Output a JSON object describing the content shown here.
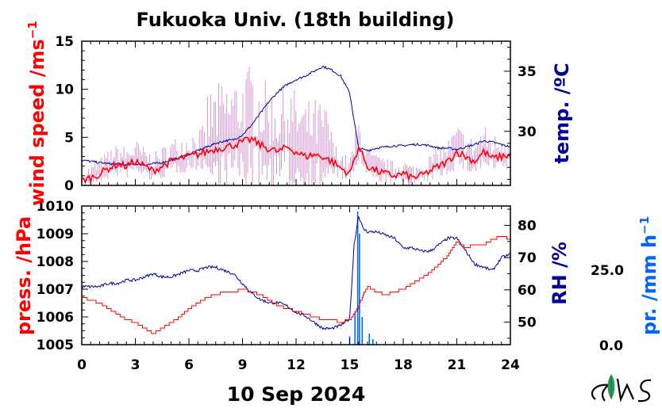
{
  "colors": {
    "wind": "#ff0000",
    "wind_raw": "#cc88cc",
    "temp": "#000099",
    "pressure": "#ff0000",
    "rh": "#000099",
    "precip": "#0066ff",
    "logo_green": "#2a9a55"
  },
  "chart_data": [
    {
      "type": "line",
      "title": "Fukuoka Univ. (18th building)",
      "x_ticks": [
        "0",
        "3",
        "6",
        "9",
        "12",
        "15",
        "18",
        "21",
        "24"
      ],
      "xlim": [
        0,
        24
      ],
      "left_axis": {
        "label": "wind speed /ms",
        "superscript": "−1",
        "ylim": [
          0,
          15
        ],
        "ticks": [
          "0",
          "5",
          "10",
          "15"
        ]
      },
      "right_axis": {
        "label": "temp. /ºC",
        "ylim": [
          25.5,
          37.5
        ],
        "ticks": [
          "30",
          "35"
        ]
      },
      "series": [
        {
          "axis": "left",
          "kind": "wind_mean",
          "x": [
            0,
            0.5,
            1,
            1.5,
            2,
            2.5,
            3,
            3.5,
            4,
            4.5,
            5,
            5.5,
            6,
            6.5,
            7,
            7.5,
            8,
            8.5,
            9,
            9.5,
            10,
            10.5,
            11,
            11.5,
            12,
            12.5,
            13,
            13.5,
            14,
            14.5,
            15,
            15.5,
            16,
            16.5,
            17,
            17.5,
            18,
            18.5,
            19,
            19.5,
            20,
            20.5,
            21,
            21.5,
            22,
            22.5,
            23,
            23.5,
            24
          ],
          "values": [
            0.5,
            0.8,
            1.2,
            1.8,
            2.2,
            2.0,
            2.5,
            2.0,
            1.5,
            2.0,
            2.5,
            2.8,
            3.0,
            3.2,
            3.5,
            3.8,
            4.0,
            4.2,
            4.5,
            4.8,
            4.2,
            3.8,
            3.5,
            4.0,
            3.5,
            3.0,
            3.2,
            3.0,
            2.5,
            1.8,
            1.2,
            4.0,
            2.0,
            1.5,
            1.2,
            1.0,
            1.2,
            0.8,
            1.0,
            1.5,
            2.0,
            2.5,
            3.5,
            3.0,
            2.5,
            3.5,
            2.8,
            3.0,
            3.2
          ]
        },
        {
          "axis": "right",
          "kind": "temperature",
          "x": [
            0,
            0.5,
            1,
            1.5,
            2,
            2.5,
            3,
            3.5,
            4,
            4.5,
            5,
            5.5,
            6,
            6.5,
            7,
            7.5,
            8,
            8.5,
            9,
            9.5,
            10,
            10.5,
            11,
            11.5,
            12,
            12.5,
            13,
            13.5,
            14,
            14.5,
            15,
            15.5,
            16,
            16.5,
            17,
            17.5,
            18,
            18.5,
            19,
            19.5,
            20,
            20.5,
            21,
            21.5,
            22,
            22.5,
            23,
            23.5,
            24
          ],
          "values": [
            27.6,
            27.5,
            27.4,
            27.3,
            27.3,
            27.2,
            27.3,
            27.2,
            27.3,
            27.4,
            27.6,
            27.8,
            28.1,
            28.4,
            28.7,
            29.0,
            29.2,
            29.3,
            29.7,
            30.5,
            31.5,
            32.5,
            33.3,
            33.9,
            34.3,
            34.6,
            35.0,
            35.4,
            35.1,
            34.6,
            33.2,
            28.6,
            28.4,
            28.6,
            28.7,
            28.8,
            28.8,
            28.9,
            28.9,
            28.8,
            28.6,
            28.6,
            28.5,
            28.7,
            28.9,
            29.2,
            29.1,
            28.9,
            28.7
          ]
        }
      ]
    },
    {
      "type": "line",
      "x_ticks": [
        "0",
        "3",
        "6",
        "9",
        "12",
        "15",
        "18",
        "21",
        "24"
      ],
      "xlabel": "10 Sep 2024",
      "xlim": [
        0,
        24
      ],
      "left_axis": {
        "label": "press. /hPa",
        "ylim": [
          1005,
          1010
        ],
        "ticks": [
          "1005",
          "1006",
          "1007",
          "1008",
          "1009",
          "1010"
        ]
      },
      "right_axis": {
        "label": "RH /%",
        "ylim": [
          43,
          86
        ],
        "ticks": [
          "50",
          "60",
          "70",
          "80"
        ]
      },
      "precip_axis": {
        "label": "pr. /mm h",
        "superscript": "−1",
        "ylim": [
          0,
          50
        ],
        "ticks": [
          "0.0",
          "25.0"
        ]
      },
      "series": [
        {
          "axis": "left",
          "kind": "pressure",
          "x": [
            0,
            0.5,
            1,
            1.5,
            2,
            2.5,
            3,
            3.5,
            4,
            4.5,
            5,
            5.5,
            6,
            6.5,
            7,
            7.5,
            8,
            8.5,
            9,
            9.5,
            10,
            10.5,
            11,
            11.5,
            12,
            12.5,
            13,
            13.5,
            14,
            14.5,
            15,
            15.25,
            15.5,
            15.75,
            16,
            16.5,
            17,
            17.5,
            18,
            18.5,
            19,
            19.5,
            20,
            20.5,
            21,
            21.5,
            22,
            22.5,
            23,
            23.5,
            24
          ],
          "values": [
            1006.7,
            1006.6,
            1006.5,
            1006.3,
            1006.1,
            1005.9,
            1005.8,
            1005.6,
            1005.4,
            1005.6,
            1005.8,
            1006.0,
            1006.3,
            1006.5,
            1006.7,
            1006.8,
            1006.9,
            1006.9,
            1007.0,
            1006.9,
            1006.8,
            1006.6,
            1006.4,
            1006.3,
            1006.2,
            1006.1,
            1006.0,
            1005.9,
            1005.9,
            1005.8,
            1005.9,
            1006.1,
            1006.4,
            1006.8,
            1007.1,
            1006.9,
            1006.8,
            1006.9,
            1007.0,
            1007.2,
            1007.4,
            1007.6,
            1007.9,
            1008.2,
            1008.7,
            1008.5,
            1008.6,
            1008.6,
            1008.8,
            1008.9,
            1008.8
          ]
        },
        {
          "axis": "right",
          "kind": "humidity",
          "x": [
            0,
            0.5,
            1,
            1.5,
            2,
            2.5,
            3,
            3.5,
            4,
            4.5,
            5,
            5.5,
            6,
            6.5,
            7,
            7.5,
            8,
            8.5,
            9,
            9.5,
            10,
            10.5,
            11,
            11.5,
            12,
            12.5,
            13,
            13.5,
            14,
            14.5,
            15,
            15.25,
            15.5,
            15.75,
            16,
            16.5,
            17,
            17.5,
            18,
            18.5,
            19,
            19.5,
            20,
            20.5,
            21,
            21.5,
            22,
            22.5,
            23,
            23.5,
            24
          ],
          "values": [
            61,
            61,
            61,
            62,
            62,
            63,
            63,
            64,
            65,
            64,
            64,
            65,
            66,
            66,
            67,
            67,
            66,
            65,
            62,
            59,
            57,
            56,
            56,
            55,
            53,
            52,
            50,
            48,
            48,
            49,
            51,
            74,
            83,
            79,
            78,
            78,
            77,
            76,
            73,
            73,
            72,
            72,
            74,
            76,
            76,
            72,
            68,
            67,
            66,
            70,
            71
          ]
        },
        {
          "axis": "precip",
          "kind": "precipitation",
          "x": [
            15.0,
            15.3,
            15.45,
            15.55,
            15.7,
            16.1,
            16.3
          ],
          "values": [
            3,
            12,
            48,
            40,
            10,
            4,
            2
          ]
        }
      ]
    }
  ]
}
